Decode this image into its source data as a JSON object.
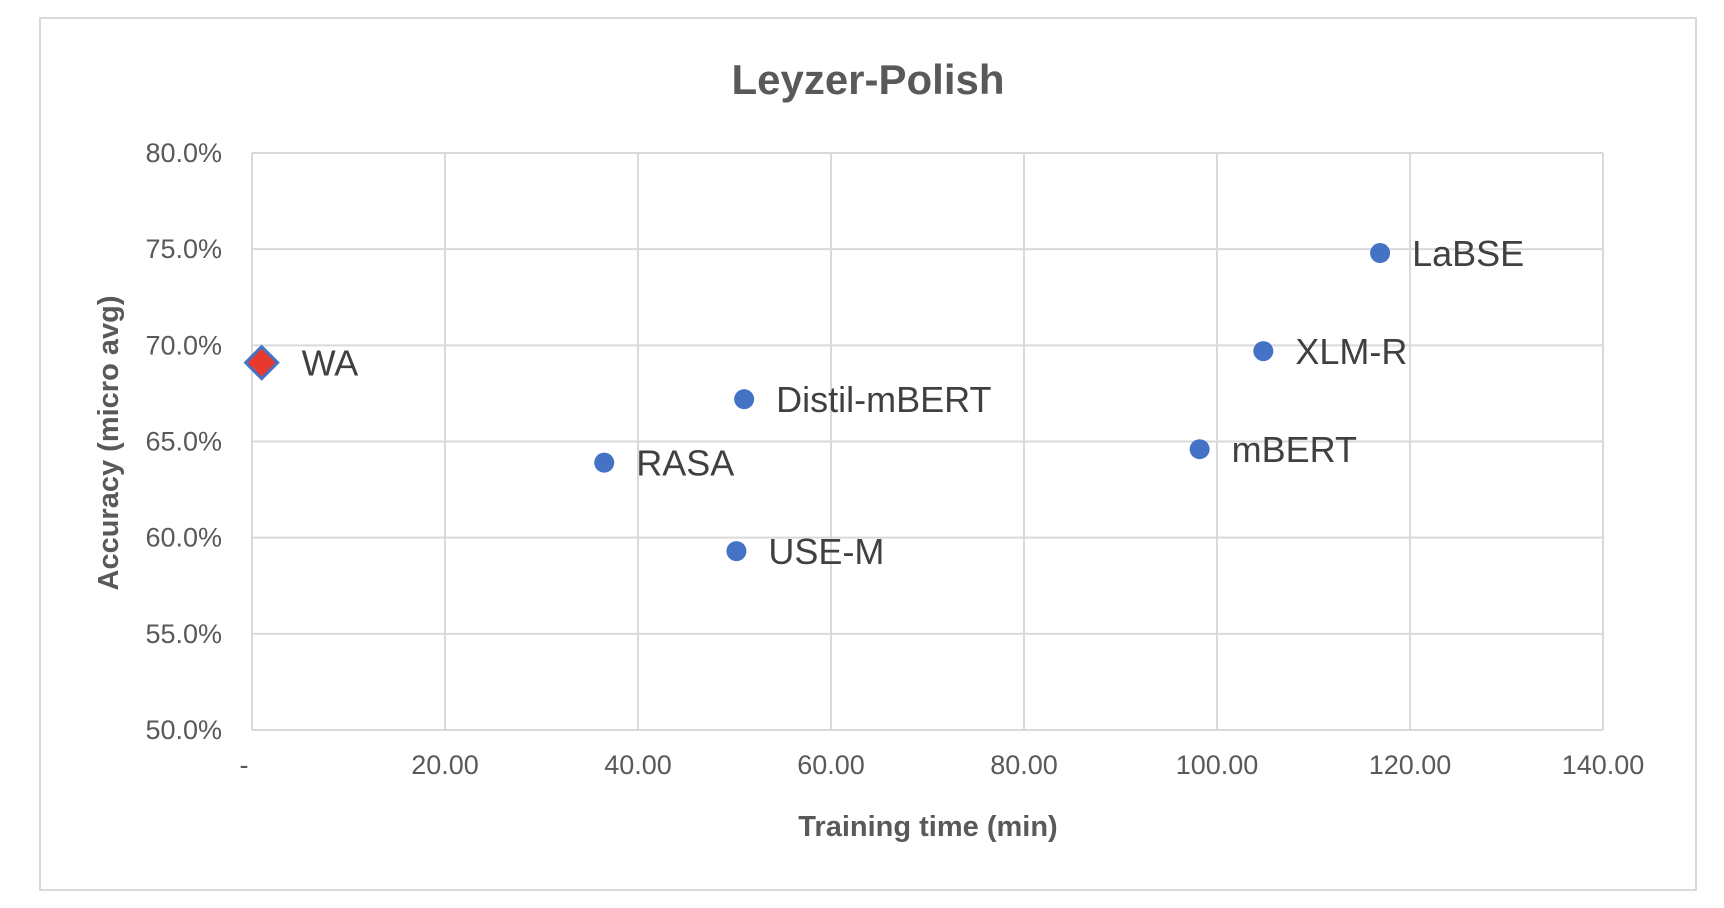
{
  "chart_data": {
    "type": "scatter",
    "title": "Leyzer-Polish",
    "xlabel": "Training time (min)",
    "ylabel": "Accuracy (micro avg)",
    "xlim": [
      0,
      140
    ],
    "ylim": [
      50,
      80
    ],
    "x_ticks": [
      {
        "value": 0,
        "label": "-"
      },
      {
        "value": 20,
        "label": "20.00"
      },
      {
        "value": 40,
        "label": "40.00"
      },
      {
        "value": 60,
        "label": "60.00"
      },
      {
        "value": 80,
        "label": "80.00"
      },
      {
        "value": 100,
        "label": "100.00"
      },
      {
        "value": 120,
        "label": "120.00"
      },
      {
        "value": 140,
        "label": "140.00"
      }
    ],
    "y_ticks": [
      {
        "value": 50,
        "label": "50.0%"
      },
      {
        "value": 55,
        "label": "55.0%"
      },
      {
        "value": 60,
        "label": "60.0%"
      },
      {
        "value": 65,
        "label": "65.0%"
      },
      {
        "value": 70,
        "label": "70.0%"
      },
      {
        "value": 75,
        "label": "75.0%"
      },
      {
        "value": 80,
        "label": "80.0%"
      }
    ],
    "grid": true,
    "legend": "none",
    "colors": {
      "point": "#4472C4",
      "highlight_fill": "#E8392F",
      "highlight_stroke": "#4472C4",
      "grid": "#D9D9D9",
      "frame": "#D9D9D9"
    },
    "points": [
      {
        "label": "WA",
        "x": 1,
        "y": 69.1,
        "marker": "diamond"
      },
      {
        "label": "RASA",
        "x": 36.5,
        "y": 63.9,
        "marker": "circle"
      },
      {
        "label": "USE-M",
        "x": 50.2,
        "y": 59.3,
        "marker": "circle"
      },
      {
        "label": "Distil-mBERT",
        "x": 51.0,
        "y": 67.2,
        "marker": "circle"
      },
      {
        "label": "mBERT",
        "x": 98.2,
        "y": 64.6,
        "marker": "circle"
      },
      {
        "label": "XLM-R",
        "x": 104.8,
        "y": 69.7,
        "marker": "circle"
      },
      {
        "label": "LaBSE",
        "x": 116.9,
        "y": 74.8,
        "marker": "circle"
      }
    ]
  }
}
